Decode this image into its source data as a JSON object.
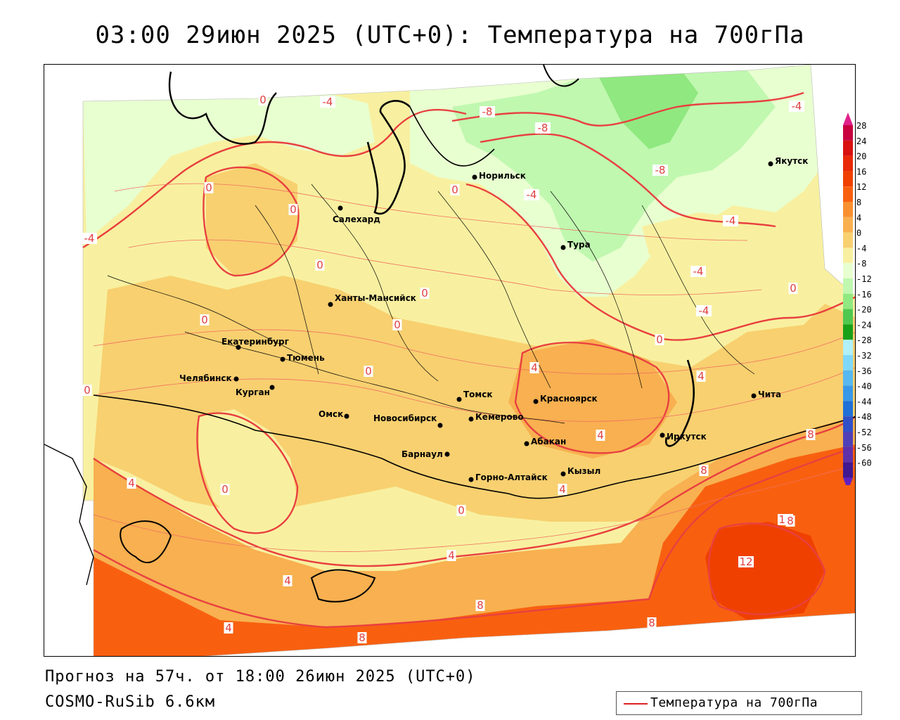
{
  "title": "03:00 29июн 2025 (UTC+0): Температура на 700гПа",
  "footer": {
    "forecast": "Прогноз на 57ч. от 18:00 26июн 2025 (UTC+0)",
    "model": "COSMO-RuSib 6.6км"
  },
  "legend": {
    "label": "Температура на 700гПа",
    "line_color": "#e02020"
  },
  "colorbar": {
    "ticks": [
      "28",
      "24",
      "20",
      "16",
      "12",
      "8",
      "4",
      "0",
      "-4",
      "-8",
      "-12",
      "-16",
      "-20",
      "-24",
      "-28",
      "-32",
      "-36",
      "-40",
      "-44",
      "-48",
      "-52",
      "-56",
      "-60"
    ],
    "colors": [
      "#c80040",
      "#d81010",
      "#e82808",
      "#f04000",
      "#f86010",
      "#f89030",
      "#f8b050",
      "#f8d070",
      "#f8f0a0",
      "#e8ffd0",
      "#c0f8b0",
      "#90e880",
      "#50c850",
      "#18a018",
      "#b0f0f8",
      "#80d8f8",
      "#58b8f0",
      "#3898e8",
      "#2070d8",
      "#3050c8",
      "#5040b8",
      "#6030a8",
      "#401890"
    ]
  },
  "cities": [
    {
      "name": "Салехард"
    },
    {
      "name": "Норильск"
    },
    {
      "name": "Якутск"
    },
    {
      "name": "Тура"
    },
    {
      "name": "Ханты-Мансийск"
    },
    {
      "name": "Екатеринбург"
    },
    {
      "name": "Тюмень"
    },
    {
      "name": "Челябинск"
    },
    {
      "name": "Курган"
    },
    {
      "name": "Омск"
    },
    {
      "name": "Новосибирск"
    },
    {
      "name": "Томск"
    },
    {
      "name": "Кемерово"
    },
    {
      "name": "Красноярск"
    },
    {
      "name": "Абакан"
    },
    {
      "name": "Барнаул"
    },
    {
      "name": "Горно-Алтайск"
    },
    {
      "name": "Кызыл"
    },
    {
      "name": "Иркутск"
    },
    {
      "name": "Чита"
    }
  ],
  "isotherm_labels": [
    "0",
    "-4",
    "-8",
    "-8",
    "-4",
    "-4",
    "0",
    "-8",
    "-4",
    "0",
    "0",
    "0",
    "-4",
    "0",
    "0",
    "0",
    "0",
    "0",
    "-4",
    "-4",
    "0",
    "4",
    "0",
    "4",
    "4",
    "0",
    "0",
    "4",
    "4",
    "4",
    "4",
    "8",
    "8",
    "12",
    "12",
    "4",
    "8",
    "8",
    "8",
    "8"
  ]
}
